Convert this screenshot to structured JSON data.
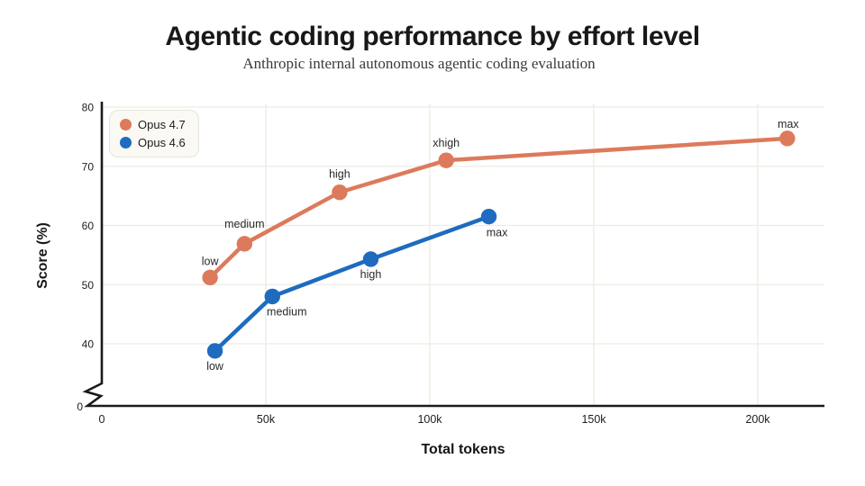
{
  "header": {
    "title": "Agentic coding performance by effort level",
    "subtitle": "Anthropic internal autonomous agentic coding evaluation"
  },
  "legend": {
    "items": [
      {
        "label": "Opus 4.7",
        "color": "#dd7a5c"
      },
      {
        "label": "Opus 4.6",
        "color": "#1e6bbf"
      }
    ]
  },
  "colors": {
    "grid": "#edebe2",
    "axis": "#1a1a1a",
    "background": "#ffffff"
  },
  "chart_data": {
    "type": "line",
    "title": "Agentic coding performance by effort level",
    "subtitle": "Anthropic internal autonomous agentic coding evaluation",
    "xlabel": "Total tokens",
    "ylabel": "Score (%)",
    "grid": true,
    "legend_position": "top-left",
    "axis_break_y": true,
    "ylim_visible": [
      40,
      80
    ],
    "xlim_tokens_k": [
      0,
      220
    ],
    "x_ticks": [
      {
        "label": "0",
        "tokens_k": 0
      },
      {
        "label": "50k",
        "tokens_k": 50
      },
      {
        "label": "100k",
        "tokens_k": 100
      },
      {
        "label": "150k",
        "tokens_k": 150
      },
      {
        "label": "200k",
        "tokens_k": 200
      }
    ],
    "y_ticks": [
      {
        "label": "80",
        "value": 80
      },
      {
        "label": "70",
        "value": 70
      },
      {
        "label": "60",
        "value": 60
      },
      {
        "label": "50",
        "value": 50
      },
      {
        "label": "40",
        "value": 40
      },
      {
        "label": "0",
        "value": 0,
        "below_break": true
      }
    ],
    "series": [
      {
        "name": "Opus 4.7",
        "color": "#dd7a5c",
        "points": [
          {
            "tokens_k": 33,
            "score": 51.2,
            "label": "low",
            "label_dx": 0,
            "label_dy": -14
          },
          {
            "tokens_k": 43.5,
            "score": 56.9,
            "label": "medium",
            "label_dx": 0,
            "label_dy": -18
          },
          {
            "tokens_k": 72.5,
            "score": 65.6,
            "label": "high",
            "label_dx": 0,
            "label_dy": -16
          },
          {
            "tokens_k": 105,
            "score": 71.0,
            "label": "xhigh",
            "label_dx": 0,
            "label_dy": -15
          },
          {
            "tokens_k": 209,
            "score": 74.7,
            "label": "max",
            "label_dx": 1,
            "label_dy": -12
          }
        ]
      },
      {
        "name": "Opus 4.6",
        "color": "#1e6bbf",
        "points": [
          {
            "tokens_k": 34.5,
            "score": 38.8,
            "label": "low",
            "label_dx": 0,
            "label_dy": 21
          },
          {
            "tokens_k": 52,
            "score": 48.0,
            "label": "medium",
            "label_dx": 16,
            "label_dy": 21
          },
          {
            "tokens_k": 82,
            "score": 54.3,
            "label": "high",
            "label_dx": 0,
            "label_dy": 21
          },
          {
            "tokens_k": 118,
            "score": 61.5,
            "label": "max",
            "label_dx": 9,
            "label_dy": 22
          }
        ]
      }
    ]
  }
}
